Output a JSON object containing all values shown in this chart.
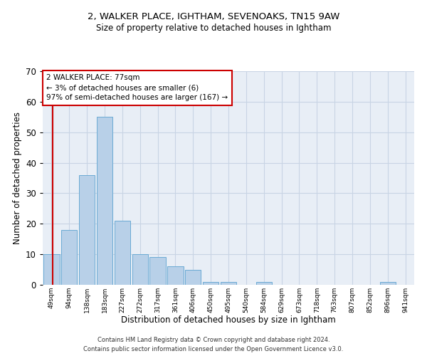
{
  "title_line1": "2, WALKER PLACE, IGHTHAM, SEVENOAKS, TN15 9AW",
  "title_line2": "Size of property relative to detached houses in Ightham",
  "xlabel": "Distribution of detached houses by size in Ightham",
  "ylabel": "Number of detached properties",
  "categories": [
    "49sqm",
    "94sqm",
    "138sqm",
    "183sqm",
    "227sqm",
    "272sqm",
    "317sqm",
    "361sqm",
    "406sqm",
    "450sqm",
    "495sqm",
    "540sqm",
    "584sqm",
    "629sqm",
    "673sqm",
    "718sqm",
    "763sqm",
    "807sqm",
    "852sqm",
    "896sqm",
    "941sqm"
  ],
  "values": [
    10,
    18,
    36,
    55,
    21,
    10,
    9,
    6,
    5,
    1,
    1,
    0,
    1,
    0,
    0,
    0,
    0,
    0,
    0,
    1,
    0
  ],
  "bar_color": "#b8d0e8",
  "bar_edge_color": "#6aaad4",
  "grid_color": "#c8d4e4",
  "background_color": "#e8eef6",
  "annotation_box_text": "2 WALKER PLACE: 77sqm\n← 3% of detached houses are smaller (6)\n97% of semi-detached houses are larger (167) →",
  "annotation_box_color": "#ffffff",
  "annotation_box_edge_color": "#cc0000",
  "marker_line_color": "#cc0000",
  "ylim": [
    0,
    70
  ],
  "yticks": [
    0,
    10,
    20,
    30,
    40,
    50,
    60,
    70
  ],
  "footnote_line1": "Contains HM Land Registry data © Crown copyright and database right 2024.",
  "footnote_line2": "Contains public sector information licensed under the Open Government Licence v3.0."
}
